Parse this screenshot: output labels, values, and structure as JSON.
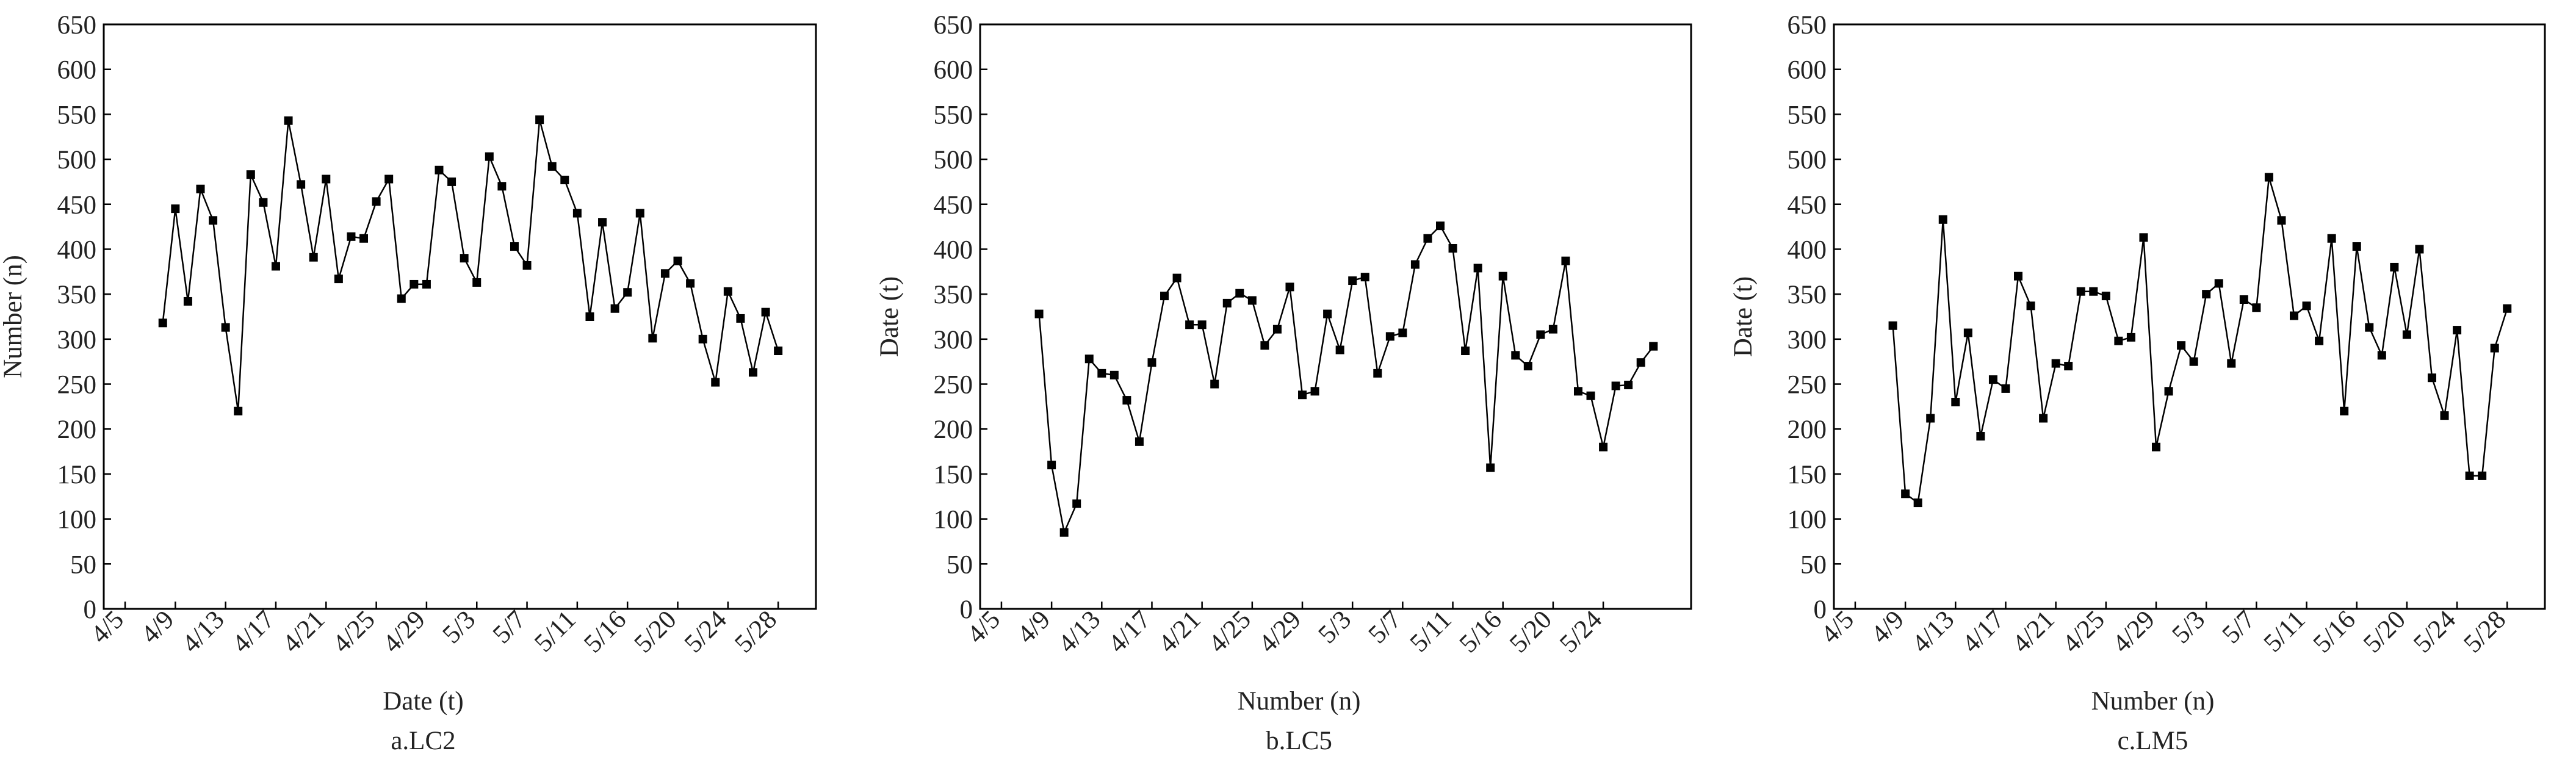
{
  "chart_data": [
    {
      "type": "line",
      "title": "a.LC2",
      "xlabel": "Date (t)",
      "ylabel": "Number (n)",
      "categories": [
        "4/5",
        null,
        null,
        null,
        "4/9",
        null,
        null,
        null,
        "4/13",
        null,
        null,
        null,
        "4/17",
        null,
        null,
        null,
        "4/21",
        null,
        null,
        null,
        "4/25",
        null,
        null,
        null,
        "4/29",
        null,
        null,
        null,
        "5/3",
        null,
        null,
        null,
        "5/7",
        null,
        null,
        null,
        "5/11",
        null,
        null,
        null,
        "5/16",
        null,
        null,
        null,
        "5/20",
        null,
        null,
        null,
        "5/24",
        null,
        null,
        null,
        "5/28"
      ],
      "series": [
        {
          "color": "#000000",
          "values": [
            null,
            null,
            null,
            318,
            445,
            342,
            467,
            432,
            313,
            220,
            483,
            452,
            381,
            543,
            472,
            391,
            478,
            367,
            414,
            412,
            453,
            478,
            345,
            361,
            361,
            488,
            475,
            390,
            363,
            503,
            470,
            403,
            382,
            544,
            492,
            477,
            440,
            325,
            430,
            334,
            352,
            440,
            301,
            373,
            387,
            362,
            300,
            252,
            353,
            323,
            263,
            330,
            287
          ]
        }
      ],
      "ylim": [
        0,
        650
      ],
      "yticks": [
        0,
        50,
        100,
        150,
        200,
        250,
        300,
        350,
        400,
        450,
        500,
        550,
        600,
        650
      ]
    },
    {
      "type": "line",
      "title": "b.LC5",
      "xlabel": "Number (n)",
      "ylabel": "Date (t)",
      "categories": [
        "4/5",
        null,
        null,
        null,
        "4/9",
        null,
        null,
        null,
        "4/13",
        null,
        null,
        null,
        "4/17",
        null,
        null,
        null,
        "4/21",
        null,
        null,
        null,
        "4/25",
        null,
        null,
        null,
        "4/29",
        null,
        null,
        null,
        "5/3",
        null,
        null,
        null,
        "5/7",
        null,
        null,
        null,
        "5/11",
        null,
        null,
        null,
        "5/16",
        null,
        null,
        null,
        "5/20",
        null,
        null,
        null,
        "5/24",
        null,
        null,
        null,
        null
      ],
      "series": [
        {
          "color": "#000000",
          "values": [
            null,
            null,
            null,
            328,
            160,
            85,
            117,
            278,
            262,
            260,
            232,
            186,
            274,
            348,
            368,
            316,
            316,
            250,
            340,
            351,
            343,
            293,
            311,
            358,
            238,
            242,
            328,
            288,
            365,
            369,
            262,
            303,
            307,
            383,
            412,
            426,
            401,
            287,
            379,
            157,
            370,
            282,
            270,
            305,
            311,
            387,
            242,
            237,
            180,
            248,
            249,
            274,
            292
          ]
        }
      ],
      "ylim": [
        0,
        650
      ],
      "yticks": [
        0,
        50,
        100,
        150,
        200,
        250,
        300,
        350,
        400,
        450,
        500,
        550,
        600,
        650
      ]
    },
    {
      "type": "line",
      "title": "c.LM5",
      "xlabel": "Number (n)",
      "ylabel": "Date (t)",
      "categories": [
        "4/5",
        null,
        null,
        null,
        "4/9",
        null,
        null,
        null,
        "4/13",
        null,
        null,
        null,
        "4/17",
        null,
        null,
        null,
        "4/21",
        null,
        null,
        null,
        "4/25",
        null,
        null,
        null,
        "4/29",
        null,
        null,
        null,
        "5/3",
        null,
        null,
        null,
        "5/7",
        null,
        null,
        null,
        "5/11",
        null,
        null,
        null,
        "5/16",
        null,
        null,
        null,
        "5/20",
        null,
        null,
        null,
        "5/24",
        null,
        null,
        null,
        "5/28"
      ],
      "series": [
        {
          "color": "#000000",
          "values": [
            null,
            null,
            null,
            315,
            128,
            118,
            212,
            433,
            230,
            307,
            192,
            255,
            245,
            370,
            337,
            212,
            273,
            270,
            353,
            353,
            348,
            298,
            302,
            413,
            180,
            242,
            293,
            275,
            350,
            362,
            273,
            344,
            335,
            480,
            432,
            326,
            337,
            298,
            412,
            220,
            403,
            313,
            282,
            380,
            305,
            400,
            257,
            215,
            310,
            148,
            148,
            290,
            334
          ]
        }
      ],
      "ylim": [
        0,
        650
      ],
      "yticks": [
        0,
        50,
        100,
        150,
        200,
        250,
        300,
        350,
        400,
        450,
        500,
        550,
        600,
        650
      ]
    }
  ]
}
